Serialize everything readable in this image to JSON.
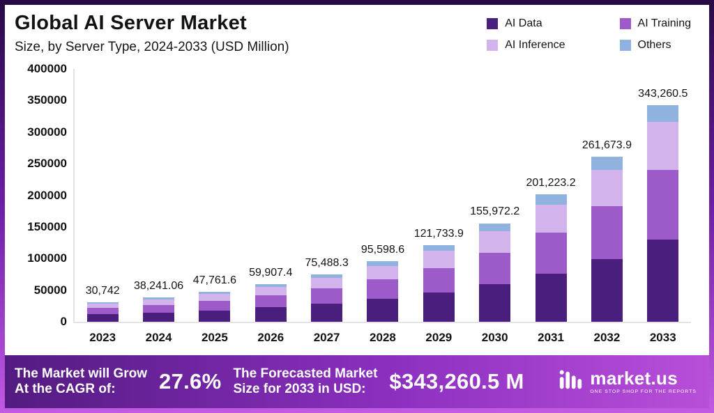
{
  "header": {
    "title": "Global AI Server Market",
    "subtitle": "Size, by Server Type, 2024-2033 (USD Million)"
  },
  "legend": [
    {
      "label": "AI Data",
      "color": "#4a1e7d"
    },
    {
      "label": "AI Training",
      "color": "#9d5bc9"
    },
    {
      "label": "AI Inference",
      "color": "#d3b3ec"
    },
    {
      "label": "Others",
      "color": "#8fb3de"
    }
  ],
  "chart_data": {
    "type": "bar",
    "stacked": true,
    "title": "Global AI Server Market Size, by Server Type, 2024-2033 (USD Million)",
    "xlabel": "",
    "ylabel": "",
    "units": "USD Million",
    "ylim": [
      0,
      400000
    ],
    "ytick_step": 50000,
    "grid": false,
    "legend_position": "top-right",
    "categories": [
      "2023",
      "2024",
      "2025",
      "2026",
      "2027",
      "2028",
      "2029",
      "2030",
      "2031",
      "2032",
      "2033"
    ],
    "series": [
      {
        "name": "AI Data",
        "color": "#4a1e7d",
        "values": [
          11682.0,
          14531.6,
          18149.4,
          22764.8,
          28685.6,
          36327.5,
          46258.9,
          59269.4,
          76464.8,
          99436.1,
          130439.0
        ]
      },
      {
        "name": "AI Training",
        "color": "#9d5bc9",
        "values": [
          9837.4,
          12237.1,
          15283.7,
          19170.4,
          24156.3,
          30591.6,
          38954.8,
          49911.1,
          64391.4,
          83735.6,
          109843.4
        ]
      },
      {
        "name": "AI Inference",
        "color": "#d3b3ec",
        "values": [
          6763.2,
          8413.0,
          10507.6,
          13179.6,
          16607.4,
          21031.7,
          26781.5,
          34313.9,
          44269.1,
          57568.3,
          75517.3
        ]
      },
      {
        "name": "Others",
        "color": "#8fb3de",
        "values": [
          2459.4,
          3059.3,
          3820.9,
          4792.6,
          6039.1,
          7647.9,
          9738.7,
          12477.8,
          16097.9,
          20933.9,
          27460.8
        ]
      }
    ],
    "totals": [
      30742,
      38241.06,
      47761.6,
      59907.4,
      75488.3,
      95598.6,
      121733.9,
      155972.2,
      201223.2,
      261673.9,
      343260.5
    ],
    "total_labels": [
      "30,742",
      "38,241.06",
      "47,761.6",
      "59,907.4",
      "75,488.3",
      "95,598.6",
      "121,733.9",
      "155,972.2",
      "201,223.2",
      "261,673.9",
      "343,260.5"
    ]
  },
  "footer": {
    "cagr_label": [
      "The Market will Grow",
      "At the CAGR of:"
    ],
    "cagr_value": "27.6%",
    "forecast_label": [
      "The Forecasted Market",
      "Size for 2033 in USD:"
    ],
    "forecast_value": "$343,260.5 M",
    "brand": {
      "name": "market.us",
      "tagline": "ONE STOP SHOP FOR THE REPORTS"
    }
  }
}
